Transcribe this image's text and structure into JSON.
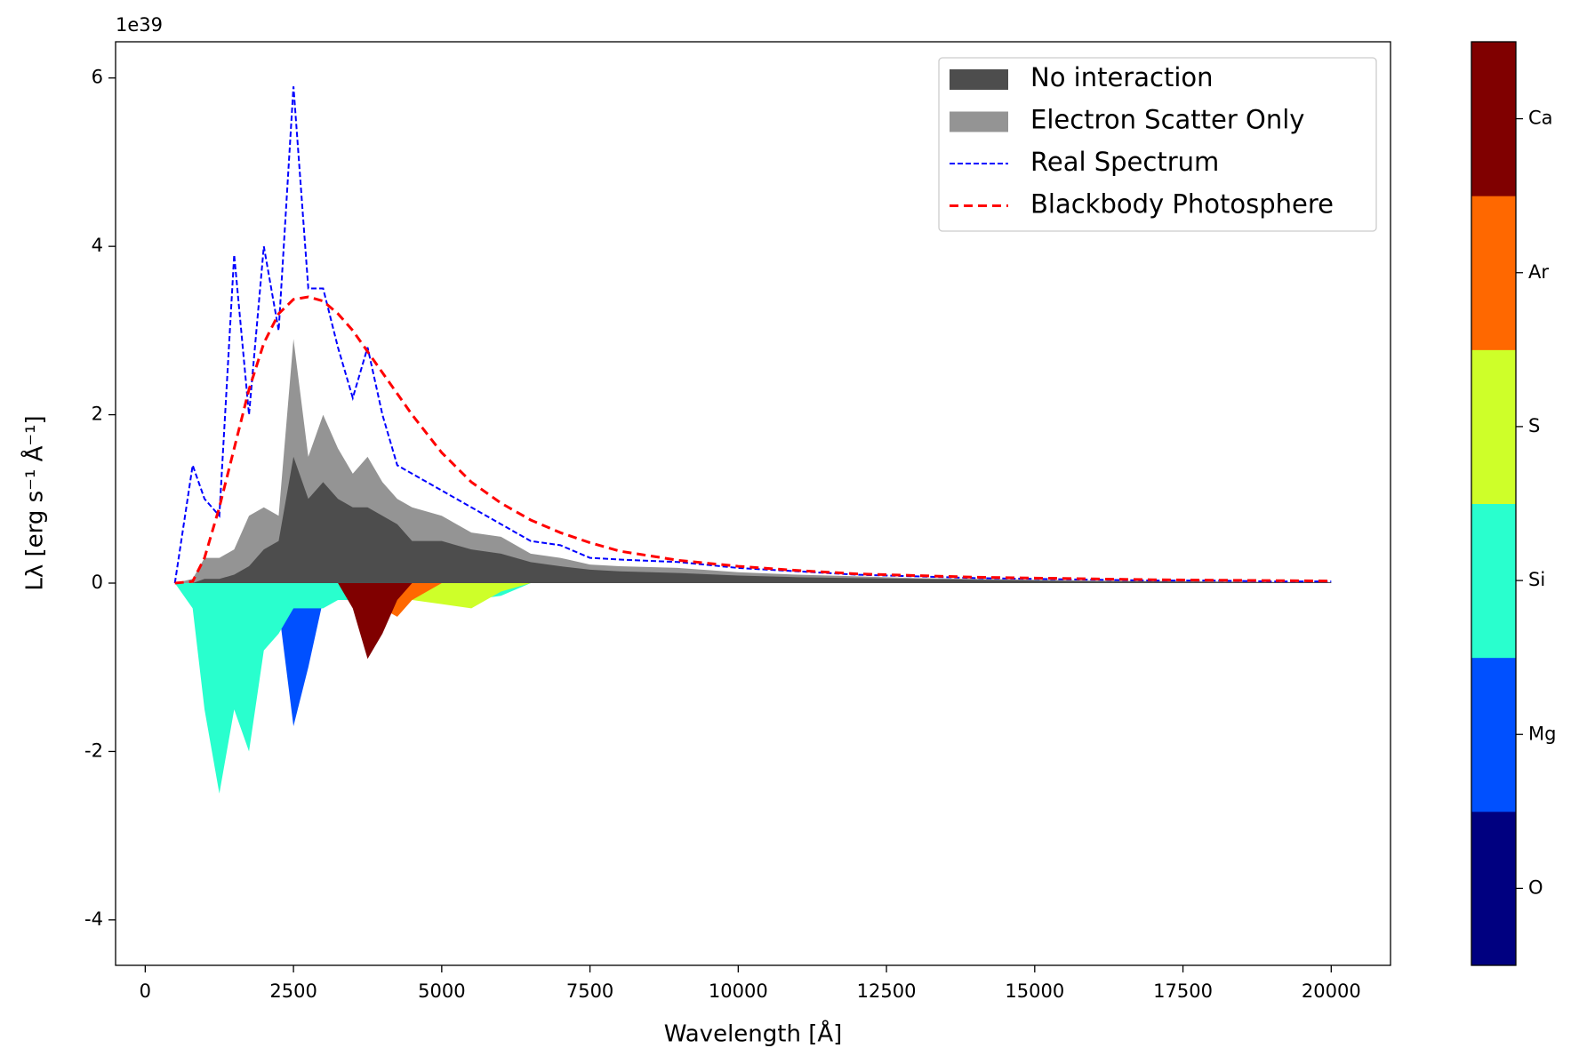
{
  "chart_data": {
    "type": "area",
    "y_offset_label": "1e39",
    "xlabel": "Wavelength [Å]",
    "ylabel": "Lλ [erg s⁻¹ Å⁻¹]",
    "xlim": [
      -500,
      21000
    ],
    "ylim": [
      -4.54,
      6.43
    ],
    "xticks": [
      0,
      2500,
      5000,
      7500,
      10000,
      12500,
      15000,
      17500,
      20000
    ],
    "yticks": [
      -4,
      -2,
      0,
      2,
      4,
      6
    ],
    "legend": "upper right",
    "x": [
      500,
      800,
      1000,
      1250,
      1500,
      1750,
      2000,
      2250,
      2500,
      2750,
      3000,
      3250,
      3500,
      3750,
      4000,
      4250,
      4500,
      5000,
      5500,
      6000,
      6500,
      7000,
      7500,
      8000,
      9000,
      10000,
      11000,
      12000,
      13000,
      14000,
      15000,
      16000,
      17000,
      18000,
      19000,
      20000
    ],
    "series": [
      {
        "name": "No interaction",
        "color": "#4d4d4d",
        "style": "fill",
        "values": [
          0,
          0,
          0.05,
          0.05,
          0.1,
          0.2,
          0.4,
          0.5,
          1.5,
          1.0,
          1.2,
          1.0,
          0.9,
          0.9,
          0.8,
          0.7,
          0.5,
          0.5,
          0.4,
          0.35,
          0.25,
          0.2,
          0.16,
          0.14,
          0.12,
          0.09,
          0.07,
          0.06,
          0.05,
          0.04,
          0.03,
          0.02,
          0.02,
          0.015,
          0.01,
          0.01
        ]
      },
      {
        "name": "Electron Scatter Only",
        "color": "#949494",
        "style": "fill",
        "values": [
          0,
          0.05,
          0.3,
          0.3,
          0.4,
          0.8,
          0.9,
          0.8,
          2.9,
          1.5,
          2.0,
          1.6,
          1.3,
          1.5,
          1.2,
          1.0,
          0.9,
          0.8,
          0.6,
          0.55,
          0.35,
          0.3,
          0.22,
          0.2,
          0.18,
          0.13,
          0.1,
          0.08,
          0.06,
          0.05,
          0.04,
          0.03,
          0.025,
          0.02,
          0.015,
          0.01
        ]
      },
      {
        "name": "Real Spectrum",
        "color": "#0000ff",
        "style": "dashed",
        "values": [
          0,
          1.4,
          1.0,
          0.8,
          3.9,
          2.0,
          4.0,
          3.0,
          5.9,
          3.5,
          3.5,
          2.8,
          2.2,
          2.8,
          2.0,
          1.4,
          1.3,
          1.1,
          0.9,
          0.7,
          0.5,
          0.45,
          0.3,
          0.28,
          0.25,
          0.18,
          0.14,
          0.1,
          0.08,
          0.06,
          0.05,
          0.04,
          0.03,
          0.03,
          0.02,
          0.02
        ]
      },
      {
        "name": "Blackbody Photosphere",
        "color": "#ff0000",
        "style": "dashed",
        "values": [
          0,
          0.02,
          0.3,
          0.9,
          1.6,
          2.3,
          2.85,
          3.2,
          3.37,
          3.4,
          3.35,
          3.2,
          3.0,
          2.75,
          2.5,
          2.25,
          2.0,
          1.55,
          1.2,
          0.95,
          0.75,
          0.6,
          0.48,
          0.38,
          0.27,
          0.2,
          0.15,
          0.11,
          0.09,
          0.07,
          0.06,
          0.05,
          0.04,
          0.035,
          0.03,
          0.025
        ]
      }
    ],
    "colorbar_series": [
      {
        "name": "O",
        "color": "#000080",
        "values": [
          0,
          0,
          0,
          0,
          0,
          0,
          0,
          -0.5,
          -0.2,
          0,
          0,
          0,
          0,
          0,
          0,
          0,
          0,
          0,
          0,
          0,
          0,
          0,
          0,
          0,
          0,
          0,
          0,
          0,
          0,
          0,
          0,
          0,
          0,
          0,
          0,
          0
        ]
      },
      {
        "name": "Mg",
        "color": "#0050ff",
        "values": [
          0,
          0,
          0,
          0,
          0,
          0,
          0,
          -0.3,
          -1.7,
          -1.0,
          -0.2,
          0,
          0,
          0,
          0,
          0,
          0,
          0,
          0,
          0,
          0,
          0,
          0,
          0,
          0,
          0,
          0,
          0,
          0,
          0,
          0,
          0,
          0,
          0,
          0,
          0
        ]
      },
      {
        "name": "Si",
        "color": "#29ffce",
        "values": [
          0,
          -0.3,
          -1.5,
          -2.5,
          -1.5,
          -2.0,
          -0.8,
          -0.6,
          -0.3,
          -0.3,
          -0.3,
          -0.2,
          -0.2,
          -0.1,
          -0.1,
          -0.1,
          -0.1,
          -0.15,
          -0.2,
          -0.15,
          0,
          0,
          0,
          0,
          0,
          0,
          0,
          0,
          0,
          0,
          0,
          0,
          0,
          0,
          0,
          0
        ]
      },
      {
        "name": "S",
        "color": "#ceff29",
        "values": [
          0,
          0,
          0,
          0,
          0,
          0,
          0,
          0,
          0,
          0,
          0,
          0,
          0,
          0,
          0,
          0,
          -0.2,
          -0.25,
          -0.3,
          -0.1,
          0,
          0,
          0,
          0,
          0,
          0,
          0,
          0,
          0,
          0,
          0,
          0,
          0,
          0,
          0,
          0
        ]
      },
      {
        "name": "Ar",
        "color": "#ff6800",
        "values": [
          0,
          0,
          0,
          0,
          0,
          0,
          0,
          0,
          0,
          0,
          0,
          0,
          0,
          0,
          -0.3,
          -0.4,
          -0.2,
          0,
          0,
          0,
          0,
          0,
          0,
          0,
          0,
          0,
          0,
          0,
          0,
          0,
          0,
          0,
          0,
          0,
          0,
          0
        ]
      },
      {
        "name": "Ca",
        "color": "#800000",
        "values": [
          0,
          0,
          0,
          0,
          0,
          0,
          0,
          0,
          0,
          0,
          0,
          0,
          -0.3,
          -0.9,
          -0.6,
          -0.2,
          0,
          0,
          0,
          0,
          0,
          0,
          0,
          0,
          0,
          0,
          0,
          0,
          0,
          0,
          0,
          0,
          0,
          0,
          0,
          0
        ]
      }
    ]
  }
}
